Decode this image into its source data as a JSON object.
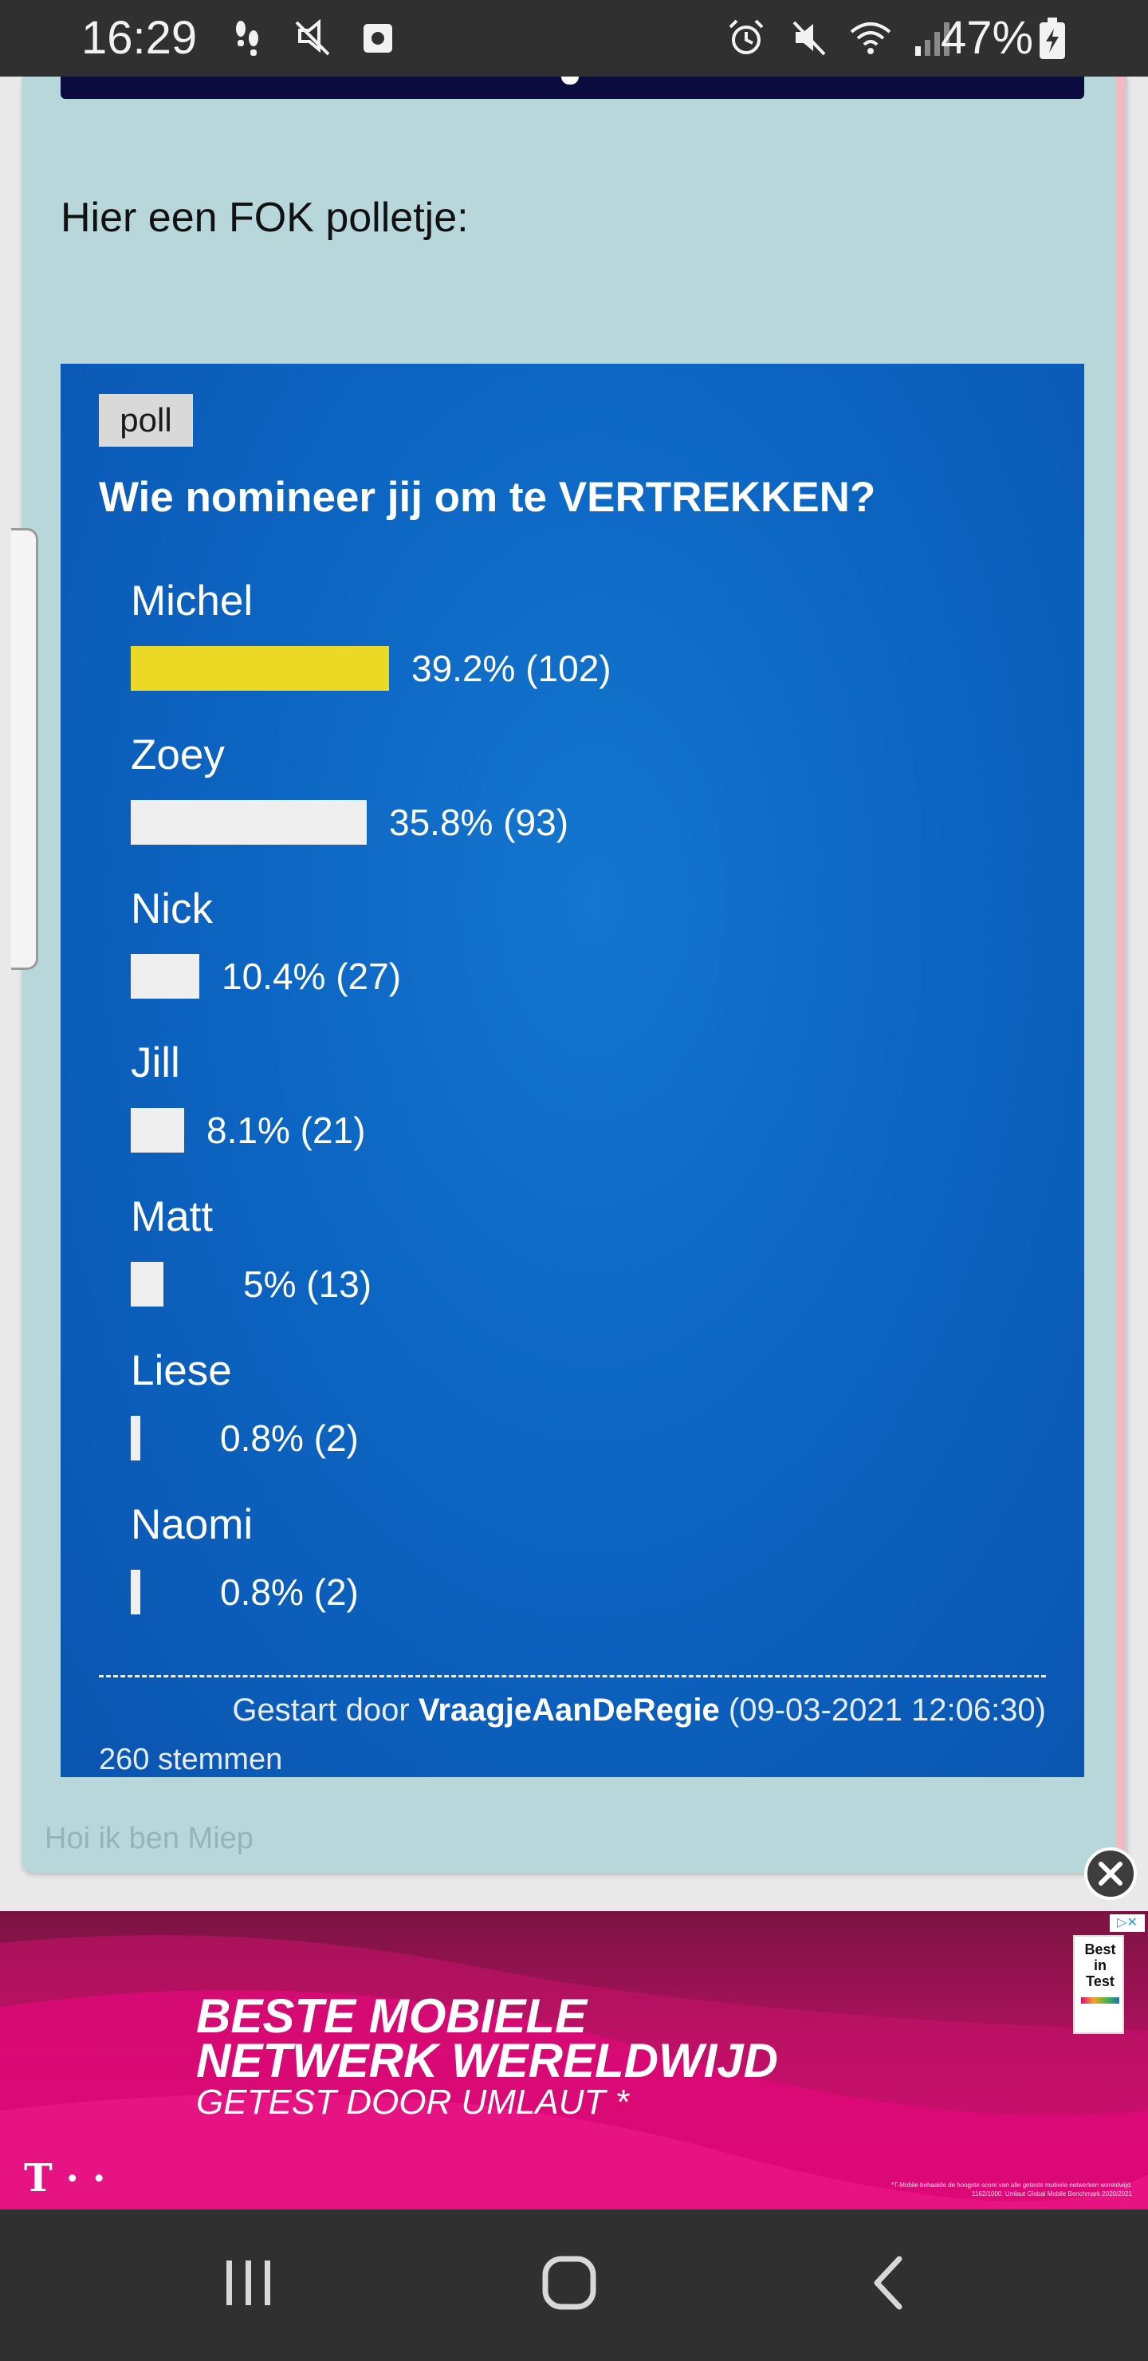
{
  "status_bar": {
    "time": "16:29",
    "battery_percent": "47%",
    "left_icons": [
      "walk-icon",
      "mute-icon",
      "photo-icon"
    ],
    "right_icons": [
      "alarm-icon",
      "vibrate-off-icon",
      "wifi-icon",
      "signal-icon",
      "battery-charging-icon"
    ]
  },
  "post": {
    "intro": "Hier een FOK polletje:",
    "signature": "Hoi ik ben Miep"
  },
  "poll": {
    "tag": "poll",
    "question": "Wie nomineer jij om te VERTREKKEN?",
    "options": [
      {
        "name": "Michel",
        "result": "39.2% (102)",
        "percent": 39.2,
        "votes": 102,
        "leader": true
      },
      {
        "name": "Zoey",
        "result": "35.8% (93)",
        "percent": 35.8,
        "votes": 93,
        "leader": false
      },
      {
        "name": "Nick",
        "result": "10.4% (27)",
        "percent": 10.4,
        "votes": 27,
        "leader": false
      },
      {
        "name": "Jill",
        "result": "8.1% (21)",
        "percent": 8.1,
        "votes": 21,
        "leader": false
      },
      {
        "name": "Matt",
        "result": "5% (13)",
        "percent": 5,
        "votes": 13,
        "leader": false
      },
      {
        "name": "Liese",
        "result": "0.8% (2)",
        "percent": 0.8,
        "votes": 2,
        "leader": false
      },
      {
        "name": "Naomi",
        "result": "0.8% (2)",
        "percent": 0.8,
        "votes": 2,
        "leader": false
      }
    ],
    "started_prefix": "Gestart door",
    "started_user": "VraagjeAanDeRegie",
    "started_date": "(09-03-2021 12:06:30)",
    "total_votes": "260 stemmen"
  },
  "ad": {
    "line1": "BESTE MOBIELE",
    "line2": "NETWERK WERELDWIJD",
    "line3": "GETEST DOOR UMLAUT *",
    "logo": "T · ·",
    "badge": "Best\nin\nTest",
    "choices": "▷✕",
    "fineprint": "*T-Mobile behaalde de hoogste score van alle geteste mobiele netwerken wereldwijd. 1162/1000. Umlaut Global Mobile Benchmark 2020/2021",
    "colors": {
      "top": "#7a1342",
      "bottom": "#e2077a"
    }
  },
  "colors": {
    "card": "#b8d7db",
    "poll_bg": "#0c65c2",
    "leader_bar": "#ecd926",
    "bar": "#efefef"
  }
}
